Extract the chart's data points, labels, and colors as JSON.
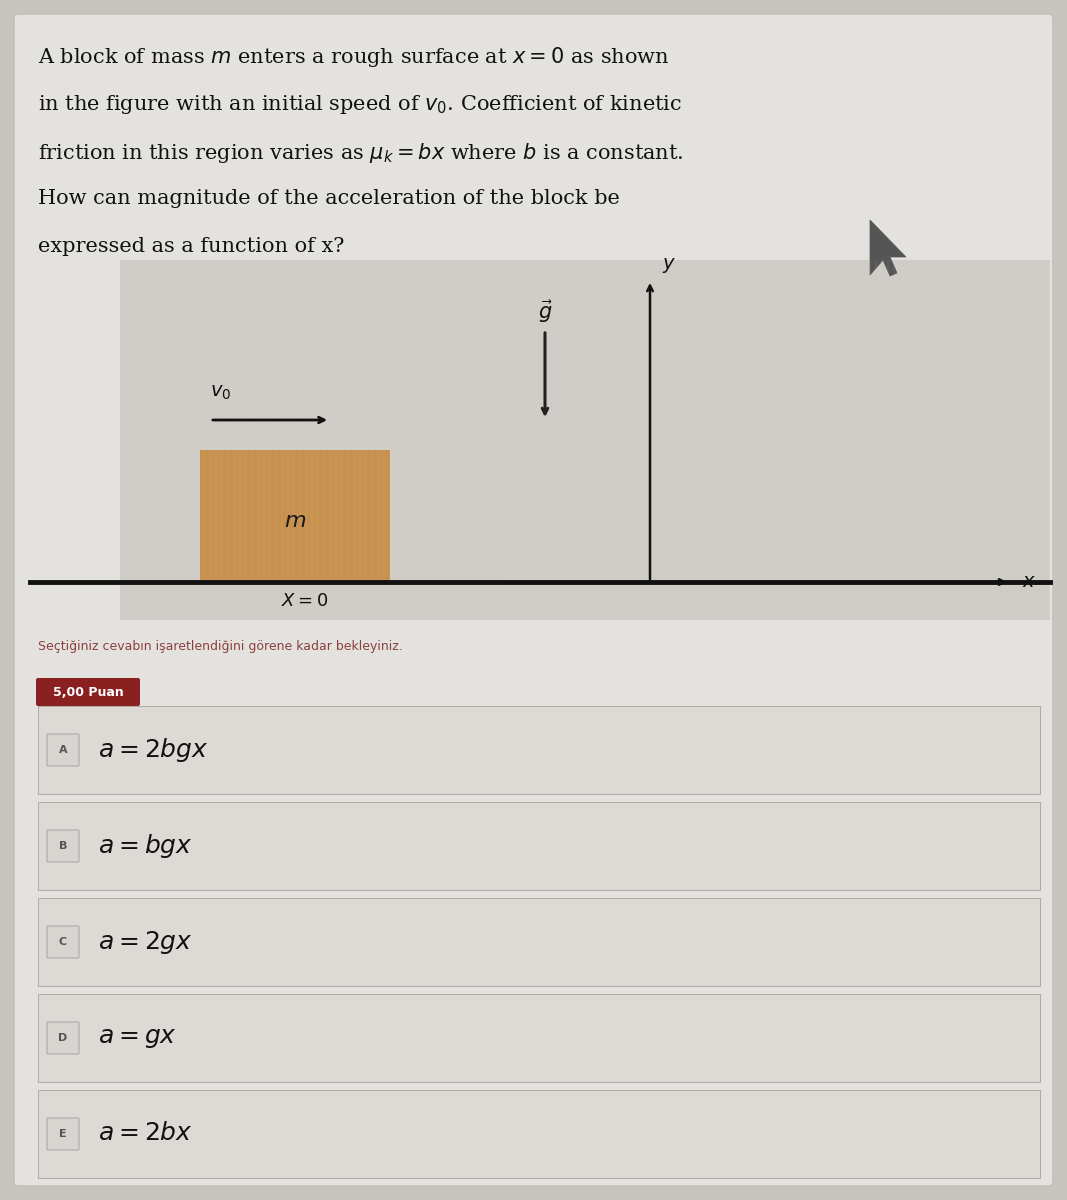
{
  "bg_color": "#c8c5bf",
  "card_color": "#e4e2de",
  "question_text_lines": [
    "A block of mass $m$ enters a rough surface at $x = 0$ as shown",
    "in the figure with an initial speed of $v_0$. Coefficient of kinetic",
    "friction in this region varies as $\\mu_k = bx$ where $b$ is a constant.",
    "How can magnitude of the acceleration of the block be",
    "expressed as a function of x?"
  ],
  "notice_text": "Seçtiğiniz cevabın işaretlendiğini görene kadar bekleyiniz.",
  "points_label": "5,00 Puan",
  "points_bg": "#8b2020",
  "points_color": "#ffffff",
  "options": [
    {
      "label": "A",
      "text": "$a = 2bgx$"
    },
    {
      "label": "B",
      "text": "$a = bgx$"
    },
    {
      "label": "C",
      "text": "$a = 2gx$"
    },
    {
      "label": "D",
      "text": "$a = gx$"
    },
    {
      "label": "E",
      "text": "$a = 2bx$"
    }
  ],
  "option_box_color": "#dddad5",
  "option_border_color": "#b0aaa4",
  "block_color": "#c8924e",
  "ground_color": "#111111",
  "axis_color": "#111111",
  "arrow_color": "#111111",
  "g_arrow_color": "#222222",
  "vo_color": "#111111",
  "diagram_bg": "#d0cdc8"
}
